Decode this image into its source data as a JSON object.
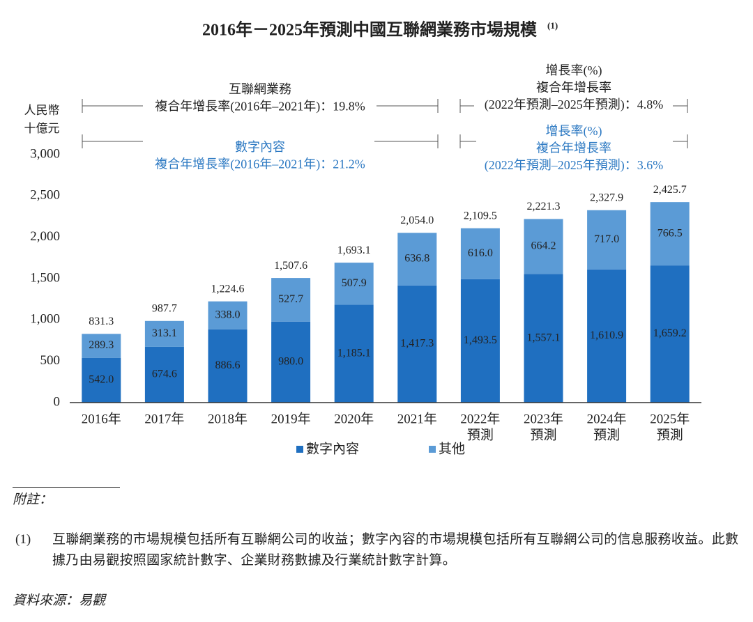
{
  "chart_data": {
    "type": "stacked_bar",
    "title": "2016年－2025年預測中國互聯網業務市場規模",
    "title_note": "(1)",
    "ylabel": [
      "人民幣",
      "十億元"
    ],
    "categories": [
      "2016年",
      "2017年",
      "2018年",
      "2019年",
      "2020年",
      "2021年",
      "2022年",
      "2023年",
      "2024年",
      "2025年"
    ],
    "category_notes": [
      null,
      null,
      null,
      null,
      null,
      null,
      "預測",
      "預測",
      "預測",
      "預測"
    ],
    "series": [
      {
        "name": "數字內容",
        "color": "#1f6fc0",
        "values": [
          542.0,
          674.6,
          886.6,
          980.0,
          1185.1,
          1417.3,
          1493.5,
          1557.1,
          1610.9,
          1659.2
        ],
        "value_labels": [
          "542.0",
          "674.6",
          "886.6",
          "980.0",
          "1,185.1",
          "1,417.3",
          "1,493.5",
          "1,557.1",
          "1,610.9",
          "1,659.2"
        ]
      },
      {
        "name": "其他",
        "color": "#5b9bd6",
        "values": [
          289.3,
          313.1,
          338.0,
          527.7,
          507.9,
          636.8,
          616.0,
          664.2,
          717.0,
          766.5
        ],
        "value_labels": [
          "289.3",
          "313.1",
          "338.0",
          "527.7",
          "507.9",
          "636.8",
          "616.0",
          "664.2",
          "717.0",
          "766.5"
        ]
      }
    ],
    "totals": [
      831.3,
      987.7,
      1224.6,
      1507.6,
      1693.1,
      2054.0,
      2109.5,
      2221.3,
      2327.9,
      2425.7
    ],
    "total_labels": [
      "831.3",
      "987.7",
      "1,224.6",
      "1,507.6",
      "1,693.1",
      "2,054.0",
      "2,109.5",
      "2,221.3",
      "2,327.9",
      "2,425.7"
    ],
    "ylim": [
      0,
      3000
    ],
    "yticks": [
      0,
      500,
      {
        "value": 1000,
        "label": "1,000"
      },
      {
        "value": 1500,
        "label": "1,500"
      },
      {
        "value": 2000,
        "label": "2,000"
      },
      {
        "value": 2500,
        "label": "2,500"
      },
      {
        "value": 3000,
        "label": "3,000"
      }
    ],
    "grid": false,
    "annotations": [
      {
        "color": "#222222",
        "lines": [
          "互聯網業務",
          "複合年增長率(2016年–2021年)：19.8%"
        ]
      },
      {
        "color": "#2b78c2",
        "lines": [
          "數字內容",
          "複合年增長率(2016年–2021年)：21.2%"
        ]
      },
      {
        "color": "#222222",
        "lines": [
          "增長率(%)",
          "複合年增長率",
          "(2022年預測–2025年預測)：4.8%"
        ]
      },
      {
        "color": "#2b78c2",
        "lines": [
          "增長率(%)",
          "複合年增長率",
          "(2022年預測–2025年預測)：3.6%"
        ]
      }
    ]
  },
  "notes": {
    "heading": "附註：",
    "items": [
      {
        "marker": "(1)",
        "text": "互聯網業務的市場規模包括所有互聯網公司的收益；數字內容的市場規模包括所有互聯網公司的信息服務收益。此數據乃由易觀按照國家統計數字、企業財務數據及行業統計數字計算。"
      }
    ],
    "source": "資料來源：易觀"
  }
}
